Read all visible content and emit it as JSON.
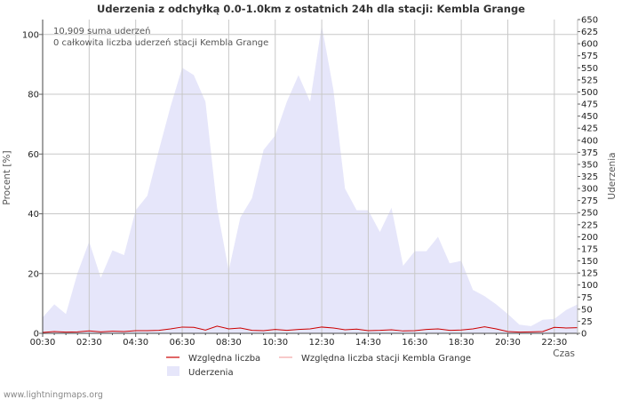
{
  "chart_data": {
    "type": "area",
    "title": "Uderzenia z odchyłką 0.0-1.0km z ostatnich 24h dla stacji: Kembla Grange",
    "xlabel": "Czas",
    "ylabel_left": "Procent   [%]",
    "ylabel_right": "Uderzenia",
    "ylim_left": [
      0,
      105
    ],
    "ylim_right": [
      0,
      650
    ],
    "left_ticks": [
      "0",
      "20",
      "40",
      "60",
      "80",
      "100"
    ],
    "right_ticks": [
      "0",
      "25",
      "50",
      "75",
      "100",
      "125",
      "150",
      "175",
      "200",
      "225",
      "250",
      "275",
      "300",
      "325",
      "350",
      "375",
      "400",
      "425",
      "450",
      "475",
      "500",
      "525",
      "550",
      "575",
      "600",
      "625",
      "650"
    ],
    "x_tick_labels": [
      "00:30",
      "02:30",
      "04:30",
      "06:30",
      "08:30",
      "10:30",
      "12:30",
      "14:30",
      "16:30",
      "18:30",
      "20:30",
      "22:30"
    ],
    "annotations": [
      "10,909 suma uderzeń",
      "0 całkowita liczba uderzeń stacji Kembla Grange"
    ],
    "legend": [
      "Względna liczba",
      "Względna liczba stacji Kembla Grange",
      "Uderzenia"
    ],
    "colors": {
      "strikes_fill": "#e6e6fa",
      "relative_line": "#cc0000",
      "station_line": "#f4a6a6",
      "grid": "#c8c8c8"
    },
    "series": [
      {
        "name": "Uderzenia",
        "values": [
          33,
          60,
          40,
          125,
          190,
          115,
          172,
          162,
          255,
          285,
          380,
          470,
          550,
          535,
          480,
          260,
          130,
          240,
          280,
          380,
          410,
          480,
          535,
          480,
          638,
          505,
          300,
          255,
          255,
          210,
          260,
          140,
          170,
          170,
          200,
          145,
          150,
          90,
          77,
          60,
          40,
          18,
          15,
          28,
          30,
          48,
          60
        ]
      },
      {
        "name": "Względna liczba",
        "values": [
          0.3,
          0.6,
          0.4,
          0.5,
          0.8,
          0.5,
          0.7,
          0.6,
          0.9,
          0.9,
          1.0,
          1.5,
          2.1,
          2.0,
          1.1,
          2.4,
          1.5,
          1.8,
          1.0,
          0.9,
          1.3,
          1.0,
          1.3,
          1.5,
          2.1,
          1.8,
          1.2,
          1.4,
          0.9,
          1.0,
          1.2,
          0.8,
          0.9,
          1.3,
          1.5,
          1.0,
          1.1,
          1.5,
          2.2,
          1.5,
          0.6,
          0.4,
          0.5,
          0.6,
          2.0,
          1.8,
          1.9
        ]
      },
      {
        "name": "Względna liczba stacji Kembla Grange",
        "values": [
          0,
          0,
          0,
          0,
          0,
          0,
          0,
          0,
          0,
          0,
          0,
          0,
          0,
          0,
          0,
          0,
          0,
          0,
          0,
          0,
          0,
          0,
          0,
          0,
          0,
          0,
          0,
          0,
          0,
          0,
          0,
          0,
          0,
          0,
          0,
          0,
          0,
          0,
          0,
          0,
          0,
          0,
          0,
          0,
          0,
          0,
          0
        ]
      }
    ]
  },
  "footer": "www.lightningmaps.org"
}
